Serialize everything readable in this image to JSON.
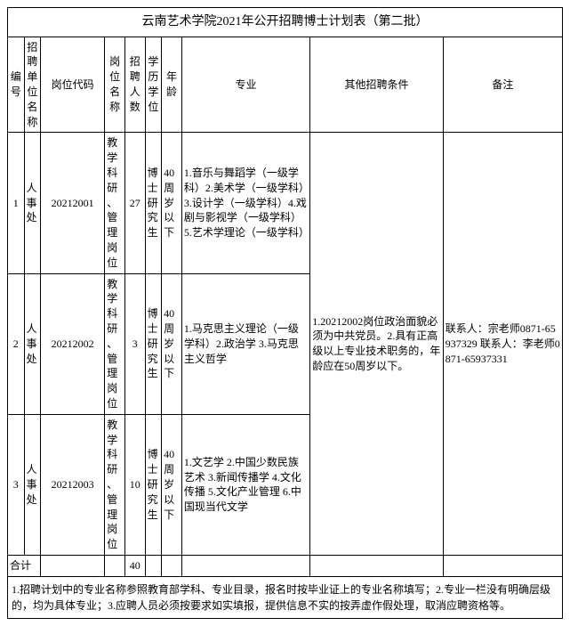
{
  "title": "云南艺术学院2021年公开招聘博士计划表（第二批）",
  "headers": {
    "no": "编号",
    "unit": "招聘单位名称",
    "code": "岗位代码",
    "posname": "岗位名称",
    "count": "招聘人数",
    "edu": "学历学位",
    "age": "年龄",
    "major": "专业",
    "cond": "其他招聘条件",
    "remark": "备注"
  },
  "rows": [
    {
      "no": "1",
      "unit": "人事处",
      "code": "20212001",
      "posname": "教学科研、管理岗位",
      "count": "27",
      "edu": "博士研究生",
      "age": "40周岁以下",
      "major": "1.音乐与舞蹈学（一级学科）2.美术学（一级学科）3.设计学（一级学科）4.戏剧与影视学（一级学科）5.艺术学理论（一级学科）"
    },
    {
      "no": "2",
      "unit": "人事处",
      "code": "20212002",
      "posname": "教学科研、管理岗位",
      "count": "3",
      "edu": "博士研究生",
      "age": "40周岁以下",
      "major": "1.马克思主义理论（一级学科）2.政治学 3.马克思主义哲学"
    },
    {
      "no": "3",
      "unit": "人事处",
      "code": "20212003",
      "posname": "教学科研、管理岗位",
      "count": "10",
      "edu": "博士研究生",
      "age": "40周岁以下",
      "major": "1.文艺学 2.中国少数民族艺术 3.新闻传播学 4.文化传播 5.文化产业管理 6.中国现当代文学"
    }
  ],
  "cond": "1.20212002岗位政治面貌必须为中共党员。2.具有正高级以上专业技术职务的，年龄应在50周岁以下。",
  "remark": "联系人：宗老师0871-65937329 联系人：李老师0871-65937331",
  "total": {
    "label": "合计",
    "count": "40"
  },
  "footnote": "1.招聘计划中的专业名称参照教育部学科、专业目录，报名时按毕业证上的专业名称填写；2.专业一栏没有明确层级的，均为具体专业；3.应聘人员必须按要求如实填报，提供信息不实的按弄虚作假处理，取消应聘资格等。"
}
